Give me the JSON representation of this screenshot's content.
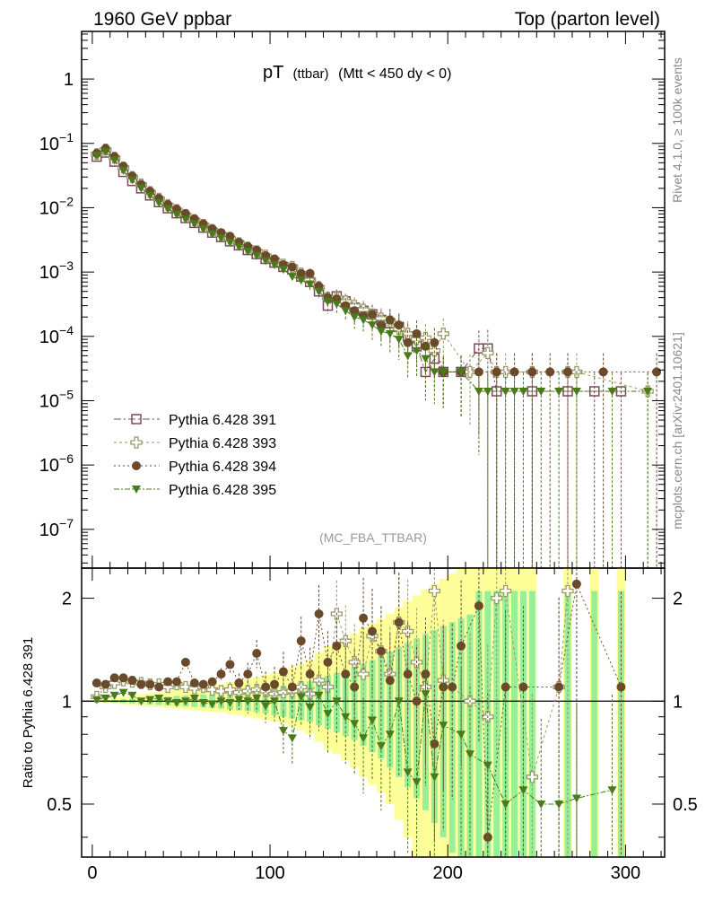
{
  "header": {
    "left": "1960 GeV ppbar",
    "right": "Top (parton level)"
  },
  "side_text": {
    "rivet": "Rivet 4.1.0, ≥ 100k events",
    "mcplots": "mcplots.cern.ch [arXiv:2401.10621]"
  },
  "colors": {
    "s391": "#7a4a5a",
    "s393": "#9a9a6a",
    "s394": "#6a4a2a",
    "s395": "#4a7a1a",
    "band_yellow": "#ffff99",
    "band_green": "#99ee99"
  },
  "chart_data": [
    {
      "id": "main",
      "type": "scatter",
      "title": "pT",
      "title_sub": "(ttbar)",
      "title_cut": "(Mtt < 450 dy < 0)",
      "watermark": "(MC_FBA_TTBAR)",
      "yscale": "log",
      "xlim": [
        -6,
        322
      ],
      "ylim": [
        2.5e-08,
        5.5
      ],
      "ytick_labels": [
        "1",
        "10^-1",
        "10^-2",
        "10^-3",
        "10^-4",
        "10^-5",
        "10^-6",
        "10^-7"
      ],
      "ytick_values": [
        1,
        0.1,
        0.01,
        0.001,
        0.0001,
        1e-05,
        1e-06,
        1e-07
      ],
      "legend": [
        "Pythia 6.428 391",
        "Pythia 6.428 393",
        "Pythia 6.428 394",
        "Pythia 6.428 395"
      ],
      "series": [
        {
          "name": "Pythia 6.428 391",
          "marker": "open-square",
          "x": [
            2.5,
            7.5,
            12.5,
            17.5,
            22.5,
            27.5,
            32.5,
            37.5,
            42.5,
            47.5,
            52.5,
            57.5,
            62.5,
            67.5,
            72.5,
            77.5,
            82.5,
            87.5,
            92.5,
            97.5,
            102.5,
            107.5,
            112.5,
            117.5,
            122.5,
            127.5,
            132.5,
            137.5,
            142.5,
            147.5,
            152.5,
            157.5,
            162.5,
            167.5,
            172.5,
            177.5,
            182.5,
            187.5,
            192.5,
            197.5,
            207.5,
            217.5,
            222.5,
            227.5,
            247.5,
            267.5,
            282.5,
            297.5
          ],
          "values": [
            0.062,
            0.072,
            0.052,
            0.036,
            0.026,
            0.02,
            0.0155,
            0.0122,
            0.0098,
            0.0082,
            0.0069,
            0.0058,
            0.0049,
            0.0041,
            0.0035,
            0.003,
            0.0026,
            0.0022,
            0.0019,
            0.0016,
            0.0014,
            0.0012,
            0.0011,
            0.00085,
            0.0007,
            0.0005,
            0.0003,
            0.00042,
            0.00035,
            0.00028,
            0.00025,
            0.00022,
            0.00018,
            0.00016,
            0.00014,
            0.0001,
            7e-05,
            2.8e-05,
            4.5e-05,
            2.8e-05,
            2.8e-05,
            6.5e-05,
            6.5e-05,
            1.4e-05,
            1.4e-05,
            1.4e-05,
            1.4e-05,
            1.4e-05
          ]
        },
        {
          "name": "Pythia 6.428 393",
          "marker": "open-cross",
          "x": [
            2.5,
            7.5,
            12.5,
            17.5,
            22.5,
            27.5,
            32.5,
            37.5,
            42.5,
            47.5,
            52.5,
            57.5,
            62.5,
            67.5,
            72.5,
            77.5,
            82.5,
            87.5,
            92.5,
            97.5,
            102.5,
            107.5,
            112.5,
            117.5,
            122.5,
            127.5,
            132.5,
            137.5,
            142.5,
            147.5,
            152.5,
            157.5,
            162.5,
            167.5,
            172.5,
            177.5,
            182.5,
            187.5,
            192.5,
            197.5,
            212.5,
            222.5,
            227.5,
            232.5,
            247.5,
            267.5,
            272.5,
            312.5
          ],
          "values": [
            0.068,
            0.08,
            0.06,
            0.042,
            0.03,
            0.023,
            0.0175,
            0.0138,
            0.011,
            0.0092,
            0.0077,
            0.0064,
            0.0054,
            0.0045,
            0.0038,
            0.0033,
            0.0028,
            0.0024,
            0.0021,
            0.0018,
            0.0015,
            0.0013,
            0.0012,
            0.00095,
            0.00075,
            0.00058,
            0.0004,
            0.0004,
            0.00035,
            0.0003,
            0.00026,
            0.00022,
            0.00019,
            0.00017,
            0.00013,
            0.00011,
            9e-05,
            9.5e-05,
            6e-05,
            0.00011,
            2.8e-05,
            5.5e-05,
            2.8e-05,
            2.8e-05,
            2.8e-05,
            2.8e-05,
            2.8e-05,
            1.4e-05
          ]
        },
        {
          "name": "Pythia 6.428 394",
          "marker": "filled-circle",
          "x": [
            2.5,
            7.5,
            12.5,
            17.5,
            22.5,
            27.5,
            32.5,
            37.5,
            42.5,
            47.5,
            52.5,
            57.5,
            62.5,
            67.5,
            72.5,
            77.5,
            82.5,
            87.5,
            92.5,
            97.5,
            102.5,
            107.5,
            112.5,
            117.5,
            122.5,
            127.5,
            132.5,
            137.5,
            142.5,
            147.5,
            152.5,
            157.5,
            162.5,
            167.5,
            172.5,
            177.5,
            182.5,
            187.5,
            192.5,
            197.5,
            207.5,
            217.5,
            227.5,
            237.5,
            247.5,
            257.5,
            267.5,
            287.5,
            317.5
          ],
          "values": [
            0.07,
            0.083,
            0.062,
            0.044,
            0.031,
            0.023,
            0.018,
            0.014,
            0.0112,
            0.0095,
            0.0081,
            0.0067,
            0.0056,
            0.0047,
            0.0041,
            0.0036,
            0.0029,
            0.0025,
            0.0022,
            0.0018,
            0.0016,
            0.0013,
            0.0012,
            0.00095,
            0.00095,
            0.0006,
            0.0004,
            0.00038,
            0.0003,
            0.00025,
            0.00021,
            0.00022,
            0.00015,
            0.00018,
            0.00015,
            8e-05,
            0.00011,
            7e-05,
            8e-05,
            2.8e-05,
            2.8e-05,
            2.8e-05,
            2.8e-05,
            2.8e-05,
            2.8e-05,
            2.8e-05,
            2.8e-05,
            2.8e-05,
            2.8e-05
          ]
        },
        {
          "name": "Pythia 6.428 395",
          "marker": "filled-triangle-down",
          "x": [
            2.5,
            7.5,
            12.5,
            17.5,
            22.5,
            27.5,
            32.5,
            37.5,
            42.5,
            47.5,
            52.5,
            57.5,
            62.5,
            67.5,
            72.5,
            77.5,
            82.5,
            87.5,
            92.5,
            97.5,
            102.5,
            107.5,
            112.5,
            117.5,
            122.5,
            127.5,
            132.5,
            137.5,
            142.5,
            147.5,
            152.5,
            157.5,
            162.5,
            167.5,
            172.5,
            177.5,
            182.5,
            187.5,
            192.5,
            197.5,
            207.5,
            217.5,
            222.5,
            232.5,
            237.5,
            242.5,
            252.5,
            262.5,
            272.5,
            292.5,
            312.5
          ],
          "values": [
            0.065,
            0.075,
            0.055,
            0.038,
            0.027,
            0.02,
            0.0155,
            0.012,
            0.0096,
            0.0078,
            0.0066,
            0.0056,
            0.0047,
            0.0039,
            0.0034,
            0.0029,
            0.0025,
            0.0021,
            0.0018,
            0.0015,
            0.0013,
            0.0011,
            0.00085,
            0.00075,
            0.00065,
            0.0005,
            0.00035,
            0.00032,
            0.00025,
            0.0002,
            0.00018,
            0.00015,
            0.00012,
            0.00011,
            9e-05,
            5e-05,
            6e-05,
            4.5e-05,
            2.8e-05,
            2.8e-05,
            2.8e-05,
            1.4e-05,
            1.4e-05,
            1.4e-05,
            1.4e-05,
            1.4e-05,
            1.4e-05,
            1.4e-05,
            1.4e-05,
            1.4e-05,
            1.4e-05
          ]
        }
      ]
    },
    {
      "id": "ratio",
      "type": "scatter",
      "ylabel": "Ratio to Pythia 6.428 391",
      "yscale": "log",
      "xlim": [
        -6,
        322
      ],
      "ylim": [
        0.35,
        2.45
      ],
      "ytick_labels": [
        "2",
        "1",
        "0.5"
      ],
      "ytick_values": [
        2,
        1,
        0.5
      ],
      "xtick_labels": [
        "0",
        "100",
        "200",
        "300"
      ],
      "xtick_values": [
        0,
        100,
        200,
        300
      ],
      "reference_line": 1,
      "bands": {
        "x": [
          2.5,
          7.5,
          12.5,
          17.5,
          22.5,
          27.5,
          32.5,
          37.5,
          42.5,
          47.5,
          52.5,
          57.5,
          62.5,
          67.5,
          72.5,
          77.5,
          82.5,
          87.5,
          92.5,
          97.5,
          102.5,
          107.5,
          112.5,
          117.5,
          122.5,
          127.5,
          132.5,
          137.5,
          142.5,
          147.5,
          152.5,
          157.5,
          162.5,
          167.5,
          172.5,
          177.5,
          182.5,
          187.5,
          192.5,
          197.5,
          202.5,
          207.5,
          212.5,
          217.5,
          222.5,
          227.5,
          232.5,
          237.5,
          242.5,
          247.5,
          267.5,
          282.5,
          297.5
        ],
        "yellow_rel": [
          0.005,
          0.01,
          0.015,
          0.02,
          0.025,
          0.03,
          0.035,
          0.04,
          0.045,
          0.05,
          0.055,
          0.06,
          0.065,
          0.07,
          0.075,
          0.085,
          0.09,
          0.1,
          0.11,
          0.12,
          0.13,
          0.14,
          0.16,
          0.18,
          0.2,
          0.24,
          0.28,
          0.3,
          0.33,
          0.36,
          0.4,
          0.43,
          0.46,
          0.5,
          0.55,
          0.6,
          0.65,
          0.7,
          0.75,
          0.8,
          0.85,
          0.9,
          0.95,
          1.0,
          1.0,
          1.0,
          1.0,
          1.0,
          1.0,
          1.0,
          1.0,
          1.0,
          1.0
        ],
        "green_rel": [
          0.003,
          0.006,
          0.009,
          0.012,
          0.015,
          0.018,
          0.022,
          0.025,
          0.028,
          0.032,
          0.035,
          0.038,
          0.042,
          0.045,
          0.05,
          0.055,
          0.06,
          0.065,
          0.07,
          0.08,
          0.09,
          0.1,
          0.11,
          0.12,
          0.13,
          0.15,
          0.17,
          0.19,
          0.21,
          0.23,
          0.26,
          0.29,
          0.32,
          0.36,
          0.4,
          0.44,
          0.48,
          0.52,
          0.56,
          0.6,
          0.64,
          0.68,
          0.72,
          1.0,
          1.0,
          1.0,
          1.0,
          1.0,
          1.0,
          1.0,
          1.0,
          1.0,
          1.0
        ]
      },
      "series": [
        {
          "name": "Pythia 6.428 393",
          "marker": "open-cross",
          "x": [
            2.5,
            7.5,
            12.5,
            17.5,
            22.5,
            27.5,
            32.5,
            37.5,
            42.5,
            47.5,
            52.5,
            57.5,
            62.5,
            67.5,
            72.5,
            77.5,
            82.5,
            87.5,
            92.5,
            97.5,
            102.5,
            107.5,
            112.5,
            117.5,
            122.5,
            127.5,
            132.5,
            137.5,
            142.5,
            147.5,
            152.5,
            157.5,
            162.5,
            167.5,
            172.5,
            177.5,
            182.5,
            187.5,
            192.5,
            197.5,
            212.5,
            222.5,
            227.5,
            232.5,
            247.5,
            262.5,
            267.5
          ],
          "values": [
            1.03,
            1.1,
            1.13,
            1.15,
            1.14,
            1.13,
            1.12,
            1.12,
            1.1,
            1.12,
            1.1,
            1.09,
            1.1,
            1.08,
            1.07,
            1.08,
            1.06,
            1.07,
            1.08,
            1.07,
            1.05,
            1.06,
            1.07,
            1.1,
            1.05,
            1.15,
            1.1,
            1.8,
            1.5,
            1.3,
            1.2,
            1.55,
            1.4,
            1.2,
            1.7,
            1.6,
            1.3,
            1.1,
            2.1,
            1.15,
            1.0,
            0.9,
            2.0,
            2.1,
            0.6,
            1.1,
            2.1
          ]
        },
        {
          "name": "Pythia 6.428 394",
          "marker": "filled-circle",
          "x": [
            2.5,
            7.5,
            12.5,
            17.5,
            22.5,
            27.5,
            32.5,
            37.5,
            42.5,
            47.5,
            52.5,
            57.5,
            62.5,
            67.5,
            72.5,
            77.5,
            82.5,
            87.5,
            92.5,
            97.5,
            102.5,
            107.5,
            112.5,
            117.5,
            122.5,
            127.5,
            132.5,
            137.5,
            142.5,
            147.5,
            152.5,
            157.5,
            162.5,
            167.5,
            172.5,
            177.5,
            182.5,
            187.5,
            192.5,
            197.5,
            202.5,
            207.5,
            217.5,
            222.5,
            232.5,
            242.5,
            262.5,
            272.5,
            297.5
          ],
          "values": [
            1.13,
            1.12,
            1.17,
            1.17,
            1.15,
            1.12,
            1.12,
            1.1,
            1.14,
            1.14,
            1.3,
            1.13,
            1.12,
            1.14,
            1.2,
            1.28,
            1.13,
            1.2,
            1.38,
            1.1,
            1.12,
            1.22,
            1.1,
            1.5,
            1.2,
            1.8,
            1.3,
            1.45,
            1.2,
            1.1,
            1.75,
            1.6,
            1.4,
            1.15,
            1.7,
            1.2,
            1.0,
            1.2,
            0.75,
            1.1,
            1.1,
            1.45,
            1.9,
            0.4,
            1.1,
            1.1,
            1.1,
            2.2,
            1.1
          ]
        },
        {
          "name": "Pythia 6.428 395",
          "marker": "filled-triangle-down",
          "x": [
            2.5,
            7.5,
            12.5,
            17.5,
            22.5,
            27.5,
            32.5,
            37.5,
            42.5,
            47.5,
            52.5,
            57.5,
            62.5,
            67.5,
            72.5,
            77.5,
            82.5,
            87.5,
            92.5,
            97.5,
            102.5,
            107.5,
            112.5,
            117.5,
            122.5,
            127.5,
            132.5,
            137.5,
            142.5,
            147.5,
            152.5,
            157.5,
            162.5,
            167.5,
            172.5,
            177.5,
            182.5,
            187.5,
            192.5,
            197.5,
            207.5,
            212.5,
            222.5,
            232.5,
            242.5,
            252.5,
            262.5,
            272.5,
            292.5
          ],
          "values": [
            1.01,
            1.02,
            1.04,
            1.06,
            1.04,
            1.0,
            1.01,
            1.02,
            1.0,
            0.99,
            1.0,
            1.02,
            0.99,
            0.98,
            1.0,
            0.99,
            1.01,
            1.0,
            1.02,
            0.97,
            1.0,
            0.82,
            0.78,
            1.03,
            0.96,
            1.04,
            0.92,
            1.0,
            0.9,
            0.86,
            0.78,
            0.88,
            0.74,
            0.8,
            1.0,
            0.62,
            0.58,
            1.05,
            0.6,
            0.85,
            0.8,
            0.7,
            0.65,
            0.5,
            0.55,
            0.5,
            0.5,
            0.52,
            0.55
          ]
        }
      ]
    }
  ]
}
